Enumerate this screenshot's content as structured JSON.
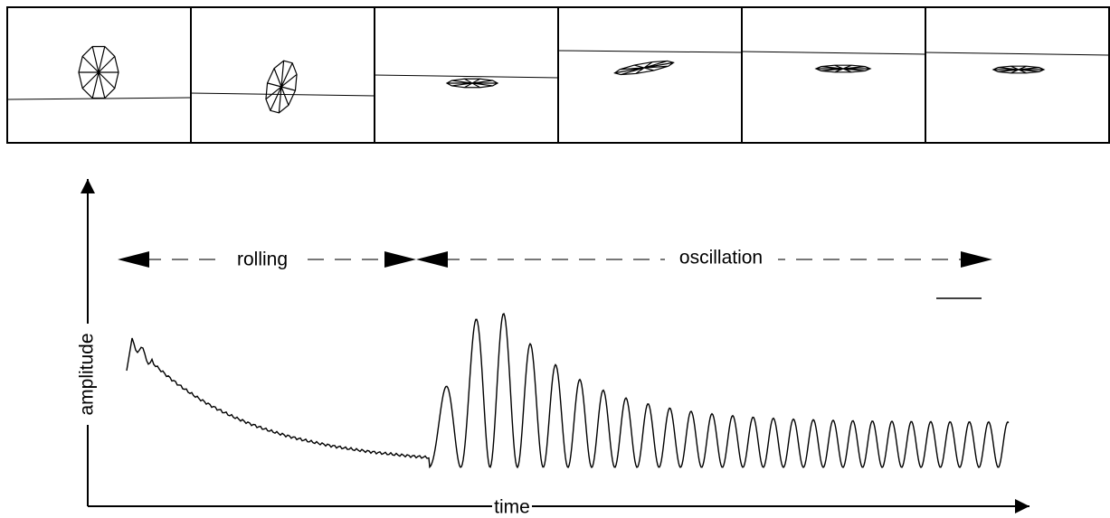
{
  "phases": [
    {
      "label": "rolling"
    },
    {
      "label": "oscillation"
    }
  ],
  "axes": {
    "y": {
      "label": "amplitude"
    },
    "x": {
      "label": "time"
    }
  }
}
